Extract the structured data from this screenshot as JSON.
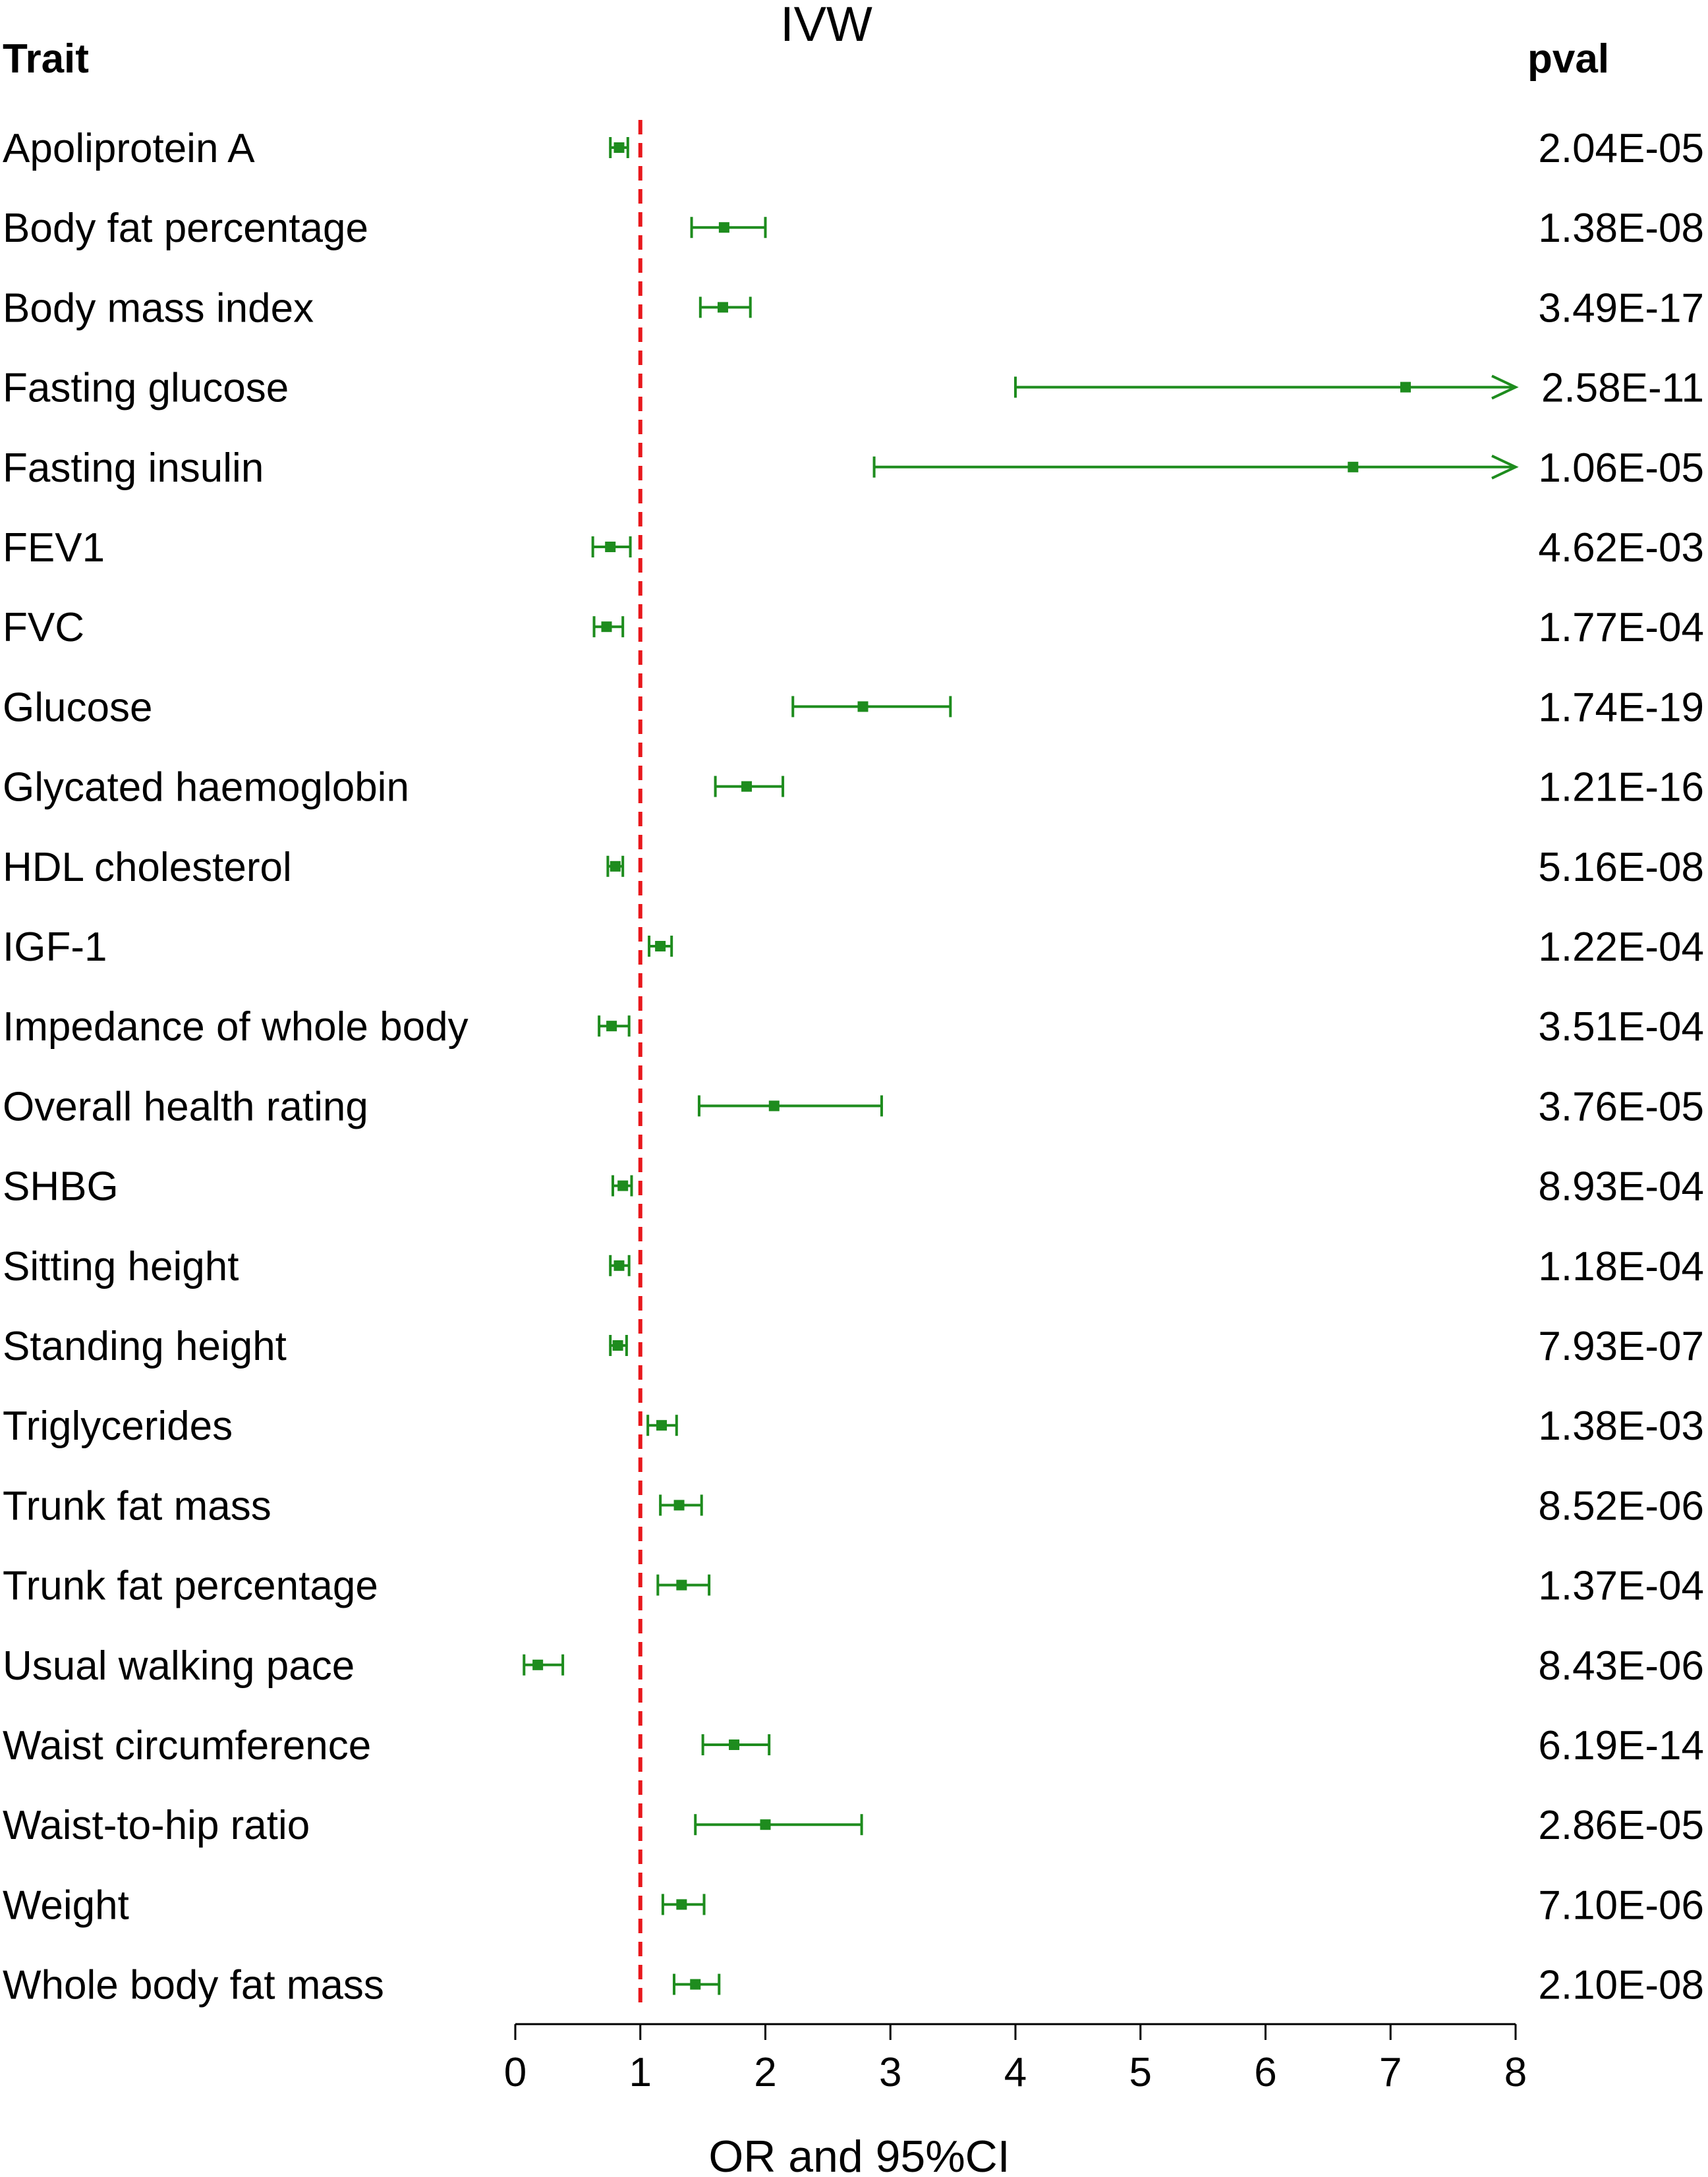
{
  "chart_data": {
    "type": "forest",
    "title": "IVW",
    "trait_header": "Trait",
    "pval_header": "pval",
    "xlabel": "OR and 95%CI",
    "xlim": [
      0,
      8
    ],
    "xticks": [
      "0",
      "1",
      "2",
      "3",
      "4",
      "5",
      "6",
      "7",
      "8"
    ],
    "reference_line": 1,
    "colors": {
      "estimate": "#1e8c1e",
      "reference": "#e8171b",
      "axis": "#000000"
    },
    "rows": [
      {
        "trait": "Apoliprotein A",
        "or": 0.83,
        "lower": 0.76,
        "upper": 0.9,
        "pval": "2.04E-05"
      },
      {
        "trait": "Body fat percentage",
        "or": 1.67,
        "lower": 1.41,
        "upper": 2.0,
        "pval": "1.38E-08"
      },
      {
        "trait": "Body mass index",
        "or": 1.66,
        "lower": 1.48,
        "upper": 1.88,
        "pval": "3.49E-17"
      },
      {
        "trait": "Fasting glucose",
        "or": 7.12,
        "lower": 4.0,
        "upper": 8.0,
        "upper_clipped": true,
        "pval": "2.58E-11"
      },
      {
        "trait": "Fasting insulin",
        "or": 6.7,
        "lower": 2.87,
        "upper": 8.0,
        "upper_clipped": true,
        "pval": "1.06E-05"
      },
      {
        "trait": "FEV1",
        "or": 0.76,
        "lower": 0.62,
        "upper": 0.92,
        "pval": "4.62E-03"
      },
      {
        "trait": "FVC",
        "or": 0.73,
        "lower": 0.63,
        "upper": 0.86,
        "pval": "1.77E-04"
      },
      {
        "trait": "Glucose",
        "or": 2.78,
        "lower": 2.22,
        "upper": 3.48,
        "pval": "1.74E-19"
      },
      {
        "trait": "Glycated haemoglobin",
        "or": 1.85,
        "lower": 1.6,
        "upper": 2.14,
        "pval": "1.21E-16"
      },
      {
        "trait": "HDL cholesterol",
        "or": 0.8,
        "lower": 0.74,
        "upper": 0.86,
        "pval": "5.16E-08"
      },
      {
        "trait": "IGF-1",
        "or": 1.16,
        "lower": 1.07,
        "upper": 1.25,
        "pval": "1.22E-04"
      },
      {
        "trait": "Impedance of whole body",
        "or": 0.77,
        "lower": 0.67,
        "upper": 0.91,
        "pval": "3.51E-04"
      },
      {
        "trait": "Overall health rating",
        "or": 2.07,
        "lower": 1.47,
        "upper": 2.93,
        "pval": "3.76E-05"
      },
      {
        "trait": "SHBG",
        "or": 0.86,
        "lower": 0.78,
        "upper": 0.93,
        "pval": "8.93E-04"
      },
      {
        "trait": "Sitting height",
        "or": 0.83,
        "lower": 0.76,
        "upper": 0.91,
        "pval": "1.18E-04"
      },
      {
        "trait": "Standing height",
        "or": 0.82,
        "lower": 0.76,
        "upper": 0.89,
        "pval": "7.93E-07"
      },
      {
        "trait": "Triglycerides",
        "or": 1.17,
        "lower": 1.06,
        "upper": 1.29,
        "pval": "1.38E-03"
      },
      {
        "trait": "Trunk fat mass",
        "or": 1.31,
        "lower": 1.16,
        "upper": 1.49,
        "pval": "8.52E-06"
      },
      {
        "trait": "Trunk fat percentage",
        "or": 1.33,
        "lower": 1.14,
        "upper": 1.55,
        "pval": "1.37E-04"
      },
      {
        "trait": "Usual walking pace",
        "or": 0.18,
        "lower": 0.07,
        "upper": 0.38,
        "pval": "8.43E-06"
      },
      {
        "trait": "Waist circumference",
        "or": 1.75,
        "lower": 1.5,
        "upper": 2.03,
        "pval": "6.19E-14"
      },
      {
        "trait": "Waist-to-hip ratio",
        "or": 2.0,
        "lower": 1.44,
        "upper": 2.77,
        "pval": "2.86E-05"
      },
      {
        "trait": "Weight",
        "or": 1.33,
        "lower": 1.18,
        "upper": 1.51,
        "pval": "7.10E-06"
      },
      {
        "trait": "Whole body fat mass",
        "or": 1.44,
        "lower": 1.27,
        "upper": 1.63,
        "pval": "2.10E-08"
      }
    ]
  }
}
